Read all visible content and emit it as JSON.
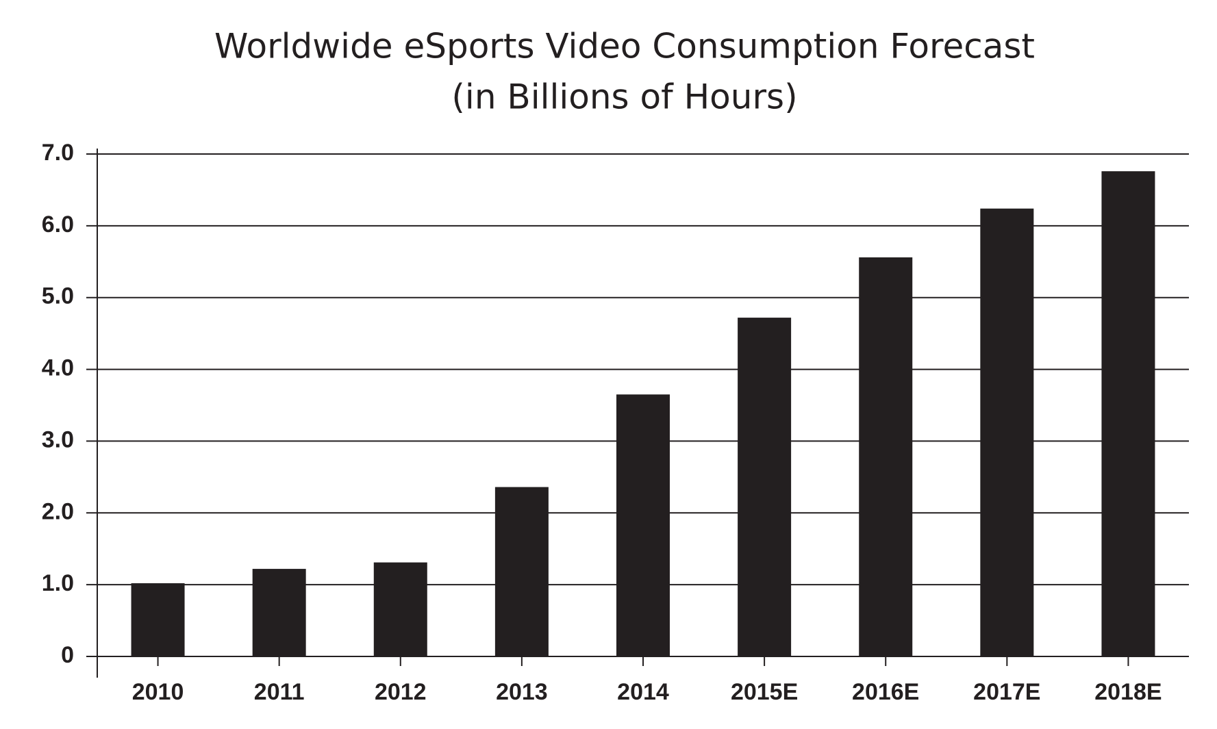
{
  "chart_data": {
    "type": "bar",
    "title": "Worldwide eSports Video Consumption Forecast",
    "subtitle": "(in Billions of Hours)",
    "categories": [
      "2010",
      "2011",
      "2012",
      "2013",
      "2014",
      "2015E",
      "2016E",
      "2017E",
      "2018E"
    ],
    "values": [
      1.02,
      1.22,
      1.31,
      2.36,
      3.65,
      4.72,
      5.56,
      6.24,
      6.76
    ],
    "color": "#231f20",
    "ylim": [
      0,
      7
    ],
    "yticks": [
      0,
      {
        "value": 1,
        "label": "1.0"
      },
      {
        "value": 2,
        "label": "2.0"
      },
      {
        "value": 3,
        "label": "3.0"
      },
      {
        "value": 4,
        "label": "4.0"
      },
      {
        "value": 5,
        "label": "5.0"
      },
      {
        "value": 6,
        "label": "6.0"
      },
      {
        "value": 7,
        "label": "7.0"
      }
    ],
    "grid": true
  }
}
